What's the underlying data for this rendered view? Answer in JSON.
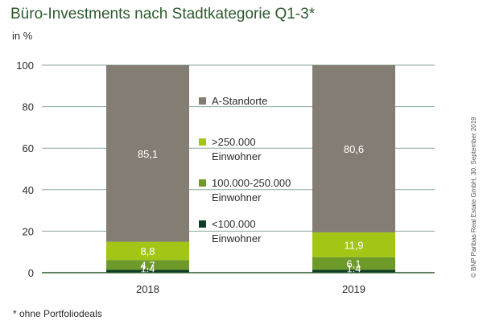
{
  "title": "Büro-Investments nach Stadtkategorie Q1-3*",
  "unit_label": "in %",
  "footnote": "* ohne Portfoliodeals",
  "credit": "© BNP Paribas Real Estate GmbH, 30. September 2019",
  "chart_data": {
    "type": "bar",
    "stacked": true,
    "categories": [
      "2018",
      "2019"
    ],
    "ylim": [
      0,
      100
    ],
    "yticks": [
      0,
      20,
      40,
      60,
      80,
      100
    ],
    "series": [
      {
        "name": "<100.000 Einwohner",
        "values": [
          1.4,
          1.4
        ],
        "labels": [
          "1,4",
          "1,4"
        ],
        "color": "#0f3d25"
      },
      {
        "name": "100.000-250.000 Einwohner",
        "values": [
          4.7,
          6.1
        ],
        "labels": [
          "4,7",
          "6,1"
        ],
        "color": "#6e9a2a"
      },
      {
        "name": ">250.000 Einwohner",
        "values": [
          8.8,
          11.9
        ],
        "labels": [
          "8,8",
          "11,9"
        ],
        "color": "#a3c616"
      },
      {
        "name": "A-Standorte",
        "values": [
          85.1,
          80.6
        ],
        "labels": [
          "85,1",
          "80,6"
        ],
        "color": "#847d74"
      }
    ],
    "legend": [
      {
        "line1": "A-Standorte",
        "line2": "",
        "color": "#847d74"
      },
      {
        "line1": ">250.000",
        "line2": "Einwohner",
        "color": "#a3c616"
      },
      {
        "line1": "100.000-250.000",
        "line2": "Einwohner",
        "color": "#6e9a2a"
      },
      {
        "line1": "<100.000",
        "line2": "Einwohner",
        "color": "#0f3d25"
      }
    ],
    "grid": true,
    "legend_position": "center"
  }
}
